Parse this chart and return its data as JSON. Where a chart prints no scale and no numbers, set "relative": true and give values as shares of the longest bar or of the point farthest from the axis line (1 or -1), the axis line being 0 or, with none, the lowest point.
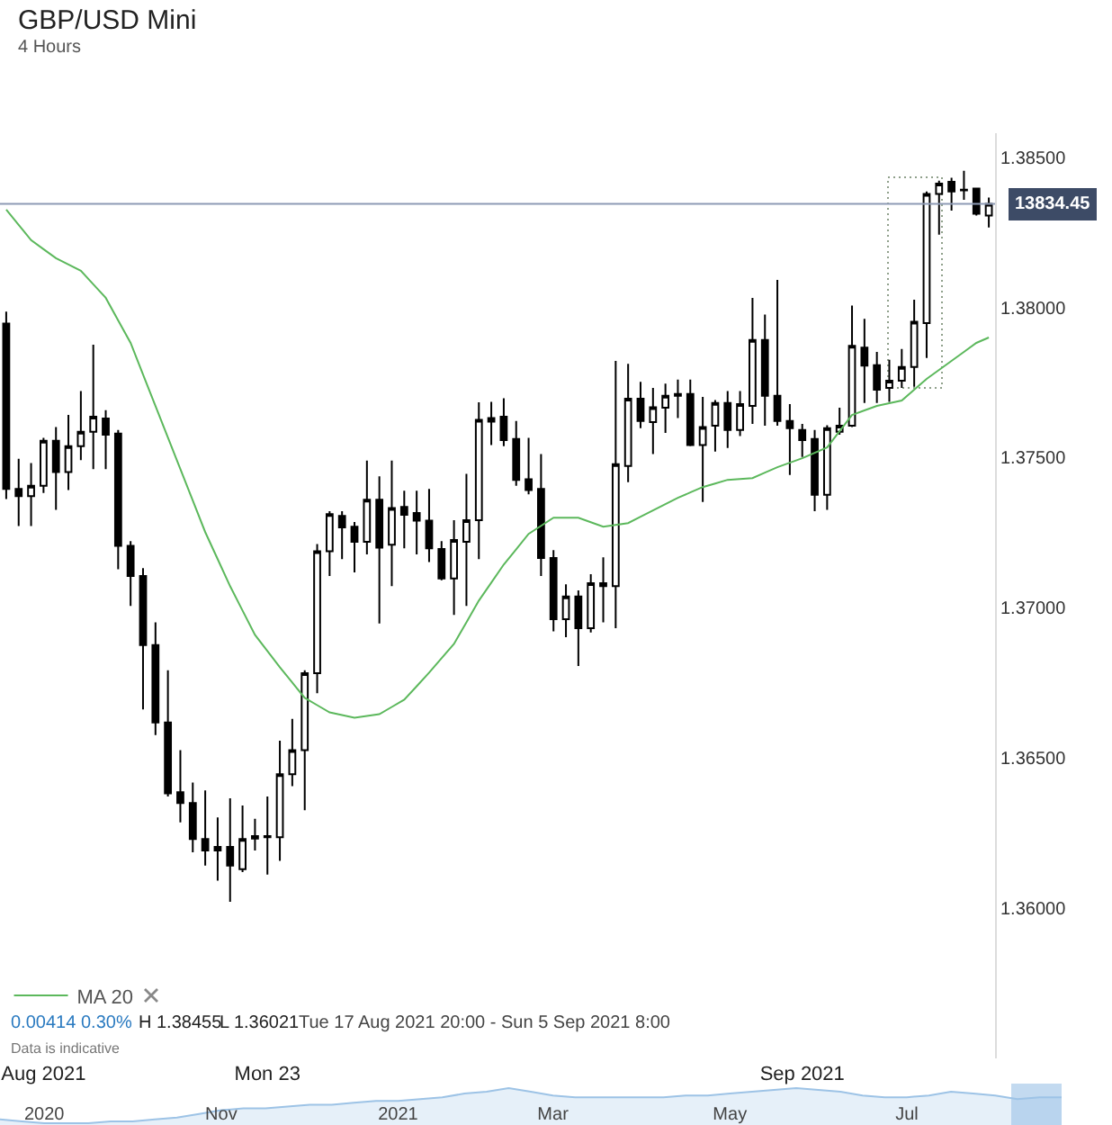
{
  "chart_data": [
    {
      "type": "candlestick",
      "title": "GBP/USD Mini",
      "subtitle": "4 Hours",
      "categories": [
        null,
        null,
        null,
        "Aug 2021",
        null,
        null,
        null,
        null,
        null,
        null,
        null,
        null,
        null,
        null,
        null,
        null,
        null,
        null,
        null,
        null,
        null,
        "Mon 23",
        null,
        null,
        null,
        null,
        null,
        null,
        null,
        null,
        null,
        null,
        null,
        null,
        null,
        null,
        null,
        null,
        null,
        null,
        null,
        null,
        null,
        null,
        null,
        null,
        null,
        null,
        null,
        null,
        null,
        null,
        null,
        null,
        null,
        null,
        null,
        null,
        null,
        null,
        null,
        null,
        null,
        null,
        "Sep 2021",
        null,
        null,
        null,
        null,
        null,
        null,
        null,
        null,
        null,
        null,
        null,
        null,
        null,
        null,
        null
      ],
      "ohlc": [
        [
          1.37946,
          1.37986,
          1.37362,
          1.37396
        ],
        [
          1.37396,
          1.37496,
          1.37272,
          1.37372
        ],
        [
          1.37372,
          1.37482,
          1.37272,
          1.37406
        ],
        [
          1.37406,
          1.37566,
          1.37382,
          1.37556
        ],
        [
          1.37556,
          1.37602,
          1.37326,
          1.37452
        ],
        [
          1.37452,
          1.37642,
          1.37392,
          1.37538
        ],
        [
          1.37538,
          1.37722,
          1.37492,
          1.37586
        ],
        [
          1.37586,
          1.37876,
          1.37462,
          1.37636
        ],
        [
          1.3763,
          1.37658,
          1.37462,
          1.37576
        ],
        [
          1.3758,
          1.37592,
          1.37128,
          1.37206
        ],
        [
          1.37206,
          1.37222,
          1.37006,
          1.37106
        ],
        [
          1.37106,
          1.37132,
          1.36662,
          1.36876
        ],
        [
          1.36876,
          1.36952,
          1.36576,
          1.36618
        ],
        [
          1.36618,
          1.36792,
          1.36372,
          1.36382
        ],
        [
          1.36386,
          1.36526,
          1.36286,
          1.3635
        ],
        [
          1.3635,
          1.36418,
          1.36186,
          1.3623
        ],
        [
          1.3623,
          1.36392,
          1.36142,
          1.36192
        ],
        [
          1.36192,
          1.36302,
          1.36092,
          1.36204
        ],
        [
          1.36204,
          1.36366,
          1.36021,
          1.36142
        ],
        [
          1.3613,
          1.36342,
          1.3612,
          1.3623
        ],
        [
          1.36232,
          1.36298,
          1.36192,
          1.3624
        ],
        [
          1.3624,
          1.36372,
          1.36112,
          1.36236
        ],
        [
          1.36236,
          1.36558,
          1.36158,
          1.36446
        ],
        [
          1.36446,
          1.3663,
          1.36406,
          1.36526
        ],
        [
          1.36526,
          1.36792,
          1.36326,
          1.36782
        ],
        [
          1.36782,
          1.37212,
          1.36716,
          1.37188
        ],
        [
          1.37188,
          1.37322,
          1.37106,
          1.37312
        ],
        [
          1.37306,
          1.37322,
          1.37162,
          1.37268
        ],
        [
          1.3727,
          1.37286,
          1.37118,
          1.3722
        ],
        [
          1.3722,
          1.3749,
          1.37178,
          1.3736
        ],
        [
          1.3736,
          1.37438,
          1.36948,
          1.372
        ],
        [
          1.3721,
          1.3749,
          1.37072,
          1.37332
        ],
        [
          1.37336,
          1.3739,
          1.37198,
          1.3731
        ],
        [
          1.37316,
          1.3739,
          1.37178,
          1.3729
        ],
        [
          1.3729,
          1.37396,
          1.37152,
          1.37198
        ],
        [
          1.37196,
          1.37222,
          1.37092,
          1.37098
        ],
        [
          1.37098,
          1.37292,
          1.36976,
          1.37226
        ],
        [
          1.3722,
          1.37446,
          1.37006,
          1.37292
        ],
        [
          1.37292,
          1.37684,
          1.37162,
          1.37626
        ],
        [
          1.37632,
          1.37686,
          1.37542,
          1.3762
        ],
        [
          1.37636,
          1.37698,
          1.37538,
          1.37558
        ],
        [
          1.37562,
          1.37622,
          1.37406,
          1.37426
        ],
        [
          1.37428,
          1.37566,
          1.37378,
          1.37392
        ],
        [
          1.37396,
          1.37512,
          1.37106,
          1.37166
        ],
        [
          1.37166,
          1.37192,
          1.36922,
          1.36962
        ],
        [
          1.36962,
          1.37078,
          1.36902,
          1.37038
        ],
        [
          1.37038,
          1.37058,
          1.36806,
          1.36932
        ],
        [
          1.36932,
          1.37112,
          1.36918,
          1.37082
        ],
        [
          1.37082,
          1.37168,
          1.36952,
          1.37072
        ],
        [
          1.37072,
          1.37822,
          1.36932,
          1.37478
        ],
        [
          1.37472,
          1.37812,
          1.37418,
          1.37696
        ],
        [
          1.37696,
          1.37752,
          1.37598,
          1.37622
        ],
        [
          1.37618,
          1.37732,
          1.37512,
          1.37668
        ],
        [
          1.37666,
          1.37746,
          1.37582,
          1.37706
        ],
        [
          1.37712,
          1.3776,
          1.37632,
          1.37706
        ],
        [
          1.37712,
          1.3776,
          1.37538,
          1.37542
        ],
        [
          1.37542,
          1.37702,
          1.37352,
          1.37602
        ],
        [
          1.37606,
          1.37692,
          1.3752,
          1.37682
        ],
        [
          1.37682,
          1.37722,
          1.37532,
          1.37592
        ],
        [
          1.37592,
          1.37722,
          1.37572,
          1.37678
        ],
        [
          1.37672,
          1.38032,
          1.37612,
          1.37892
        ],
        [
          1.37892,
          1.37976,
          1.37606,
          1.37706
        ],
        [
          1.37706,
          1.38092,
          1.37606,
          1.37622
        ],
        [
          1.37622,
          1.37678,
          1.37442,
          1.37598
        ],
        [
          1.37592,
          1.37612,
          1.37502,
          1.37558
        ],
        [
          1.37562,
          1.37592,
          1.37322,
          1.37376
        ],
        [
          1.37376,
          1.37608,
          1.37326,
          1.37598
        ],
        [
          1.37586,
          1.37666,
          1.37576,
          1.37606
        ],
        [
          1.37606,
          1.38006,
          1.37602,
          1.37872
        ],
        [
          1.37866,
          1.37962,
          1.37682,
          1.37806
        ],
        [
          1.37808,
          1.37852,
          1.37682,
          1.37726
        ],
        [
          1.37732,
          1.37826,
          1.37686,
          1.37756
        ],
        [
          1.37756,
          1.37862,
          1.37732,
          1.37802
        ],
        [
          1.37802,
          1.38026,
          1.37736,
          1.37952
        ],
        [
          1.37948,
          1.38386,
          1.37832,
          1.38378
        ],
        [
          1.38378,
          1.38422,
          1.38242,
          1.38412
        ],
        [
          1.38418,
          1.38432,
          1.38322,
          1.38386
        ],
        [
          1.38392,
          1.38455,
          1.38358,
          1.3839
        ],
        [
          1.38396,
          1.38398,
          1.38306,
          1.38312
        ],
        [
          1.38306,
          1.38366,
          1.38266,
          1.38345
        ]
      ],
      "series": [
        {
          "name": "MA 20",
          "type": "line",
          "color": "#5cb85c",
          "values": [
            1.38326,
            1.38275,
            1.38224,
            1.38194,
            1.38164,
            1.38143,
            1.38122,
            1.38077,
            1.38032,
            1.37957,
            1.37882,
            1.37777,
            1.37672,
            1.37567,
            1.37462,
            1.37357,
            1.37252,
            1.37162,
            1.37072,
            1.36991,
            1.3691,
            1.36856,
            1.36802,
            1.36751,
            1.367,
            1.36676,
            1.36652,
            1.36643,
            1.36634,
            1.3664,
            1.36646,
            1.3667,
            1.36694,
            1.36739,
            1.36784,
            1.36832,
            1.3688,
            1.36952,
            1.37024,
            1.37084,
            1.37144,
            1.37195,
            1.37246,
            1.37273,
            1.373,
            1.373,
            1.373,
            1.37285,
            1.3727,
            1.37276,
            1.37282,
            1.37303,
            1.37324,
            1.37345,
            1.37366,
            1.37384,
            1.37402,
            1.37414,
            1.37426,
            1.37429,
            1.37432,
            1.3745,
            1.37468,
            1.37483,
            1.37498,
            1.37516,
            1.37534,
            1.37588,
            1.37642,
            1.37657,
            1.37672,
            1.37681,
            1.3769,
            1.37726,
            1.37762,
            1.37792,
            1.37822,
            1.37852,
            1.37882,
            1.379
          ]
        }
      ],
      "ylim": [
        1.355,
        1.3858
      ],
      "yticks": [
        {
          "value": 1.36,
          "label": "1.36000"
        },
        {
          "value": 1.365,
          "label": "1.36500"
        },
        {
          "value": 1.37,
          "label": "1.37000"
        },
        {
          "value": 1.375,
          "label": "1.37500"
        },
        {
          "value": 1.38,
          "label": "1.38000"
        },
        {
          "value": 1.385,
          "label": "1.38500"
        }
      ],
      "ref_lines": [
        {
          "axis": "y",
          "value": 1.38345,
          "color": "#8e9bb5"
        }
      ],
      "legend": "bottom left",
      "annotations": [
        "0.00414",
        "0.30%",
        "H 1.38455",
        "L 1.36021",
        "Tue 17 Aug 2021 20:00 - Sun 5 Sep 2021 8:00",
        "Data is indicative",
        "13834.45"
      ]
    },
    {
      "type": "area",
      "relative": true,
      "color": "#9dc3e6",
      "categories": [
        null,
        null,
        "2020",
        null,
        null,
        null,
        null,
        null,
        null,
        null,
        "Nov",
        null,
        null,
        null,
        null,
        null,
        null,
        null,
        "2021",
        null,
        null,
        null,
        null,
        null,
        null,
        "Mar",
        null,
        null,
        null,
        null,
        null,
        null,
        null,
        "May",
        null,
        null,
        null,
        null,
        null,
        null,
        null,
        "Jul",
        null,
        null,
        null,
        null,
        null,
        null,
        null
      ],
      "values": [
        0.15,
        0.1,
        0.05,
        0.05,
        0.05,
        0.1,
        0.1,
        0.15,
        0.2,
        0.3,
        0.4,
        0.45,
        0.45,
        0.5,
        0.55,
        0.55,
        0.6,
        0.65,
        0.65,
        0.7,
        0.75,
        0.85,
        0.9,
        1,
        0.9,
        0.8,
        0.75,
        0.75,
        0.75,
        0.75,
        0.75,
        0.8,
        0.8,
        0.85,
        0.9,
        0.95,
        1,
        0.95,
        0.9,
        0.8,
        0.75,
        0.75,
        0.8,
        0.9,
        0.85,
        0.8,
        0.7,
        0.75,
        0.75
      ]
    }
  ]
}
